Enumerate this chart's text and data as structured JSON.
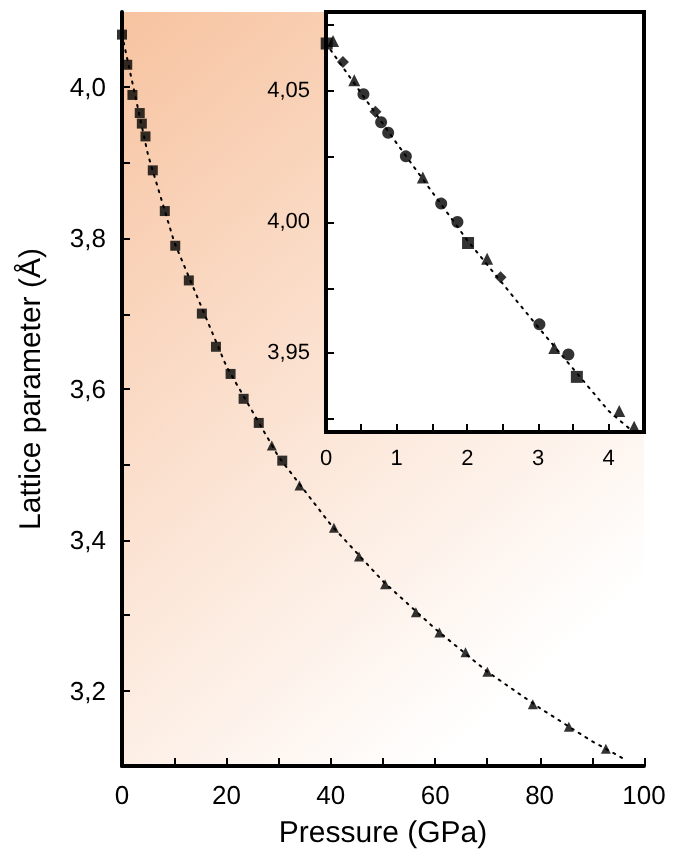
{
  "chart_data": [
    {
      "type": "scatter",
      "xlabel": "Pressure (GPa)",
      "ylabel": "Lattice parameter (Å)",
      "xlim": [
        0,
        100
      ],
      "ylim": [
        3.1,
        4.1
      ],
      "xticks": [
        0,
        {
          "value": 10,
          "label": null
        },
        20,
        {
          "value": 30,
          "label": null
        },
        40,
        {
          "value": 50,
          "label": null
        },
        60,
        {
          "value": 70,
          "label": null
        },
        80,
        {
          "value": 90,
          "label": null
        },
        100
      ],
      "yticks": [
        {
          "value": 3.2,
          "label": "3,2"
        },
        {
          "value": 3.3,
          "label": null
        },
        {
          "value": 3.4,
          "label": "3,4"
        },
        {
          "value": 3.5,
          "label": null
        },
        {
          "value": 3.6,
          "label": "3,6"
        },
        {
          "value": 3.7,
          "label": null
        },
        {
          "value": 3.8,
          "label": "3,8"
        },
        {
          "value": 3.9,
          "label": null
        },
        {
          "value": 4.0,
          "label": "4,0"
        }
      ],
      "series": [
        {
          "marker": "square",
          "color": "#000000",
          "x": [
            0,
            1,
            2,
            3.4,
            3.8,
            4.5,
            5.9,
            8.2,
            10.2,
            12.8,
            15.3,
            18,
            20.8,
            23.3,
            26.2,
            30.7
          ],
          "values": [
            4.07,
            4.03,
            3.99,
            3.966,
            3.952,
            3.935,
            3.89,
            3.836,
            3.79,
            3.744,
            3.7,
            3.656,
            3.62,
            3.587,
            3.555,
            3.505
          ]
        },
        {
          "marker": "triangle",
          "color": "#000000",
          "x": [
            28.7,
            34,
            40.6,
            45.4,
            50.4,
            56.3,
            60.8,
            65.8,
            70,
            78.7,
            85.6,
            92.7
          ],
          "values": [
            3.525,
            3.472,
            3.416,
            3.378,
            3.341,
            3.304,
            3.277,
            3.251,
            3.225,
            3.182,
            3.152,
            3.123
          ]
        },
        {
          "type": "line",
          "line_style": "dotted",
          "marker": "none",
          "color": "#000000",
          "x": [
            0,
            5,
            10,
            20,
            30,
            40,
            50,
            60,
            70,
            80,
            90,
            96
          ],
          "values": [
            4.07,
            3.91,
            3.795,
            3.63,
            3.51,
            3.42,
            3.345,
            3.282,
            3.225,
            3.177,
            3.133,
            3.11
          ]
        }
      ]
    },
    {
      "type": "scatter",
      "xlim": [
        0,
        4.5
      ],
      "ylim": [
        3.92,
        4.08
      ],
      "xticks": [
        0,
        {
          "value": 0.5,
          "label": null
        },
        1,
        {
          "value": 1.5,
          "label": null
        },
        2,
        {
          "value": 2.5,
          "label": null
        },
        3,
        {
          "value": 3.5,
          "label": null
        },
        4
      ],
      "yticks": [
        {
          "value": 3.925,
          "label": null
        },
        {
          "value": 3.95,
          "label": "3,95"
        },
        {
          "value": 3.975,
          "label": null
        },
        {
          "value": 4.0,
          "label": "4,00"
        },
        {
          "value": 4.025,
          "label": null
        },
        {
          "value": 4.05,
          "label": "4,05"
        },
        {
          "value": 4.075,
          "label": null
        }
      ],
      "series": [
        {
          "marker": "circle",
          "color": "#000000",
          "x": [
            0.53,
            0.78,
            0.88,
            1.13,
            1.63,
            1.86,
            3.02,
            3.43
          ],
          "values": [
            4.0487,
            4.038,
            4.034,
            4.025,
            4.007,
            4.0,
            3.961,
            3.9495
          ]
        },
        {
          "marker": "square",
          "color": "#000000",
          "x": [
            0.01,
            2.01,
            3.55
          ],
          "values": [
            4.068,
            3.992,
            3.941
          ]
        },
        {
          "marker": "triangle",
          "color": "#000000",
          "x": [
            0.1,
            0.4,
            1.37,
            2.28,
            3.23,
            4.15,
            4.36
          ],
          "values": [
            4.069,
            4.054,
            4.017,
            3.986,
            3.952,
            3.928,
            3.922
          ]
        },
        {
          "marker": "diamond",
          "color": "#000000",
          "x": [
            0.24,
            0.7,
            2.47
          ],
          "values": [
            4.061,
            4.042,
            3.979
          ]
        },
        {
          "type": "line",
          "line_style": "dotted",
          "marker": "none",
          "color": "#000000",
          "x": [
            0,
            1,
            2,
            3,
            4,
            4.35
          ],
          "values": [
            4.068,
            4.03,
            3.993,
            3.96,
            3.928,
            3.92
          ]
        }
      ]
    }
  ]
}
